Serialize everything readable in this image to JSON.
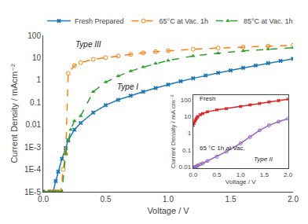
{
  "chart_data": [
    {
      "type": "line",
      "xlabel": "Voltage / V",
      "ylabel": "Current Density / mAcm⁻²",
      "log": "y",
      "xlim": [
        0,
        2
      ],
      "xticks": [
        {
          "value": 0,
          "label": "0.0"
        },
        0.5,
        {
          "value": 1,
          "label": "1.0"
        },
        1.5,
        {
          "value": 2,
          "label": "2.0"
        }
      ],
      "ylim": [
        1e-05,
        100
      ],
      "yticks": [
        {
          "value": 1e-05,
          "label": "1E-5"
        },
        {
          "value": 0.0001,
          "label": "1E-4"
        },
        {
          "value": 0.001,
          "label": "1E-3"
        },
        0.01,
        0.1,
        1,
        10,
        100
      ],
      "grid": false,
      "legend": "top",
      "annotations": [
        "Type III",
        "Type I"
      ],
      "series": [
        {
          "name": "Fresh Prepared",
          "marker": "x",
          "line_style": "solid",
          "x": [
            0.0,
            0.05,
            0.08,
            0.1,
            0.12,
            0.15,
            0.18,
            0.2,
            0.25,
            0.3,
            0.4,
            0.5,
            0.6,
            0.7,
            0.8,
            0.9,
            1.0,
            1.1,
            1.2,
            1.3,
            1.4,
            1.5,
            1.6,
            1.7,
            1.8,
            1.9,
            2.0
          ],
          "values": [
            1e-05,
            1e-05,
            1e-05,
            3e-05,
            8e-05,
            0.0003,
            0.0009,
            0.002,
            0.006,
            0.012,
            0.035,
            0.075,
            0.13,
            0.2,
            0.3,
            0.44,
            0.63,
            0.88,
            1.2,
            1.6,
            2.1,
            2.7,
            3.5,
            4.5,
            5.7,
            7.2,
            9.0
          ]
        },
        {
          "name": "65°C at Vac. 1h",
          "marker": "circle-open",
          "line_style": "dash",
          "x": [
            0.0,
            0.05,
            0.08,
            0.1,
            0.12,
            0.14,
            0.16,
            0.18,
            0.2,
            0.25,
            0.3,
            0.4,
            0.5,
            0.6,
            0.7,
            0.8,
            0.9,
            1.0,
            1.2,
            1.4,
            1.6,
            1.8,
            2.0
          ],
          "values": [
            1e-05,
            1e-05,
            1e-05,
            1e-05,
            1e-05,
            1e-05,
            0.0001,
            0.0005,
            2.0,
            4.5,
            6.0,
            8.5,
            10.0,
            12.0,
            14.0,
            16.5,
            18.5,
            20.5,
            24.0,
            27.0,
            30.0,
            33.0,
            36.0
          ]
        },
        {
          "name": "85°C at Vac. 1h",
          "marker": "triangle-up",
          "line_style": "dash",
          "x": [
            0.0,
            0.05,
            0.08,
            0.1,
            0.12,
            0.15,
            0.18,
            0.2,
            0.22,
            0.25,
            0.3,
            0.4,
            0.5,
            0.6,
            0.7,
            0.8,
            0.9,
            1.0,
            1.2,
            1.4,
            1.6,
            1.8,
            2.0
          ],
          "values": [
            1e-05,
            1e-05,
            1e-05,
            1e-05,
            1e-05,
            1e-05,
            0.0005,
            0.002,
            0.006,
            0.015,
            0.025,
            0.3,
            0.8,
            1.5,
            2.5,
            3.8,
            5.5,
            7.5,
            12.0,
            16.0,
            20.0,
            24.0,
            28.0
          ]
        }
      ]
    },
    {
      "type": "line",
      "xlabel": "Voltage / V",
      "ylabel": "Current Density / mA cm⁻²",
      "log": "y",
      "xlim": [
        0,
        2
      ],
      "xticks": [
        {
          "value": 0,
          "label": "0.0"
        },
        0.5,
        {
          "value": 1,
          "label": "1.0"
        },
        1.5,
        {
          "value": 2,
          "label": "2.0"
        }
      ],
      "ylim": [
        0.008,
        200
      ],
      "yticks": [
        0.01,
        0.1,
        1,
        10,
        100
      ],
      "grid": false,
      "annotations": [
        "Fresh",
        "65 °C 1h at Vac.",
        "Type II"
      ],
      "series": [
        {
          "marker": "x",
          "line_style": "solid",
          "x": [
            0.0,
            0.02,
            0.04,
            0.06,
            0.08,
            0.1,
            0.15,
            0.2,
            0.3,
            0.5,
            0.7,
            1.0,
            1.2,
            1.4,
            1.6,
            1.8,
            2.0
          ],
          "values": [
            3.0,
            4.0,
            5.5,
            7.0,
            8.5,
            10.0,
            13.0,
            15.0,
            19.0,
            25.0,
            30.0,
            40.0,
            50.0,
            60.0,
            75.0,
            90.0,
            110.0
          ]
        },
        {
          "marker": "circle-open",
          "line_style": "solid",
          "x": [
            0.0,
            0.02,
            0.04,
            0.06,
            0.08,
            0.1,
            0.15,
            0.2,
            0.3,
            0.5,
            0.7,
            1.0,
            1.2,
            1.4,
            1.6,
            1.8,
            2.0
          ],
          "values": [
            0.008,
            0.009,
            0.0095,
            0.01,
            0.011,
            0.012,
            0.014,
            0.016,
            0.022,
            0.04,
            0.08,
            0.25,
            0.6,
            1.5,
            3.0,
            5.0,
            7.5
          ]
        }
      ]
    }
  ]
}
